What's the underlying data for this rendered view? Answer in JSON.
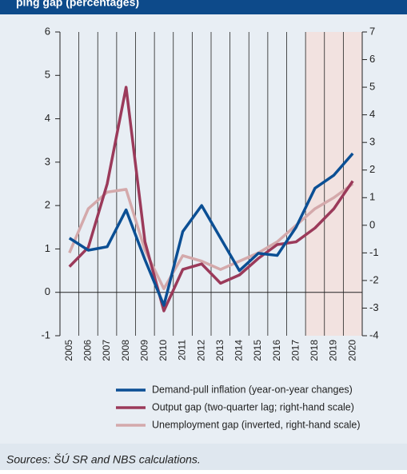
{
  "chart_data": {
    "type": "line",
    "title": "ping gap (percentages)",
    "categories": [
      "2005",
      "2006",
      "2007",
      "2008",
      "2009",
      "2010",
      "2011",
      "2012",
      "2013",
      "2014",
      "2015",
      "2016",
      "2017",
      "2018",
      "2019",
      "2020"
    ],
    "series": [
      {
        "name": "Demand-pull inflation (year-on-year changes)",
        "color": "#0b4f94",
        "values": [
          1.25,
          0.97,
          1.05,
          1.9,
          0.75,
          -0.3,
          1.4,
          2.0,
          1.25,
          0.5,
          0.9,
          0.85,
          1.5,
          2.4,
          2.7,
          3.2
        ]
      },
      {
        "name": "Output gap (two-quarter lag; right-hand scale)",
        "color": "#9b3a5a",
        "axis": "y2",
        "values": [
          -1.5,
          -0.8,
          1.5,
          5.0,
          -0.6,
          -3.1,
          -1.6,
          -1.4,
          -2.1,
          -1.8,
          -1.2,
          -0.7,
          -0.6,
          -0.1,
          0.6,
          1.6
        ]
      },
      {
        "name": "Unemployment gap (inverted, right-hand scale)",
        "color": "#d4a9ab",
        "axis": "y2",
        "values": [
          -1.0,
          0.6,
          1.2,
          1.3,
          -0.9,
          -2.3,
          -1.1,
          -1.3,
          -1.6,
          -1.3,
          -1.0,
          -0.6,
          0.0,
          0.6,
          1.0,
          1.5
        ]
      }
    ],
    "ylim": [
      -1,
      6
    ],
    "yticks": [
      -1,
      0,
      1,
      2,
      3,
      4,
      5,
      6
    ],
    "y2lim": [
      -4,
      7
    ],
    "y2ticks": [
      -4,
      -3,
      -2,
      -1,
      0,
      1,
      2,
      3,
      4,
      5,
      6,
      7
    ],
    "shaded_from": "2018",
    "source": "Sources: ŠÚ SR and NBS calculations."
  }
}
